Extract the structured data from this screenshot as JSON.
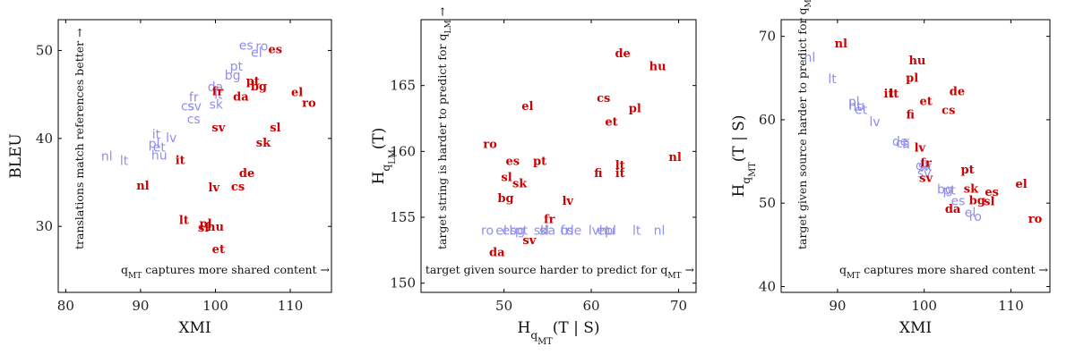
{
  "colors": {
    "source": "#8f8ff0",
    "target": "#cc0000"
  },
  "chart_data": [
    {
      "type": "scatter",
      "xlabel": "XMI",
      "ylabel": "BLEU",
      "xlim": [
        79,
        115.5
      ],
      "ylim": [
        22.5,
        53.5
      ],
      "xticks": [
        80,
        90,
        100,
        110
      ],
      "yticks": [
        30,
        40,
        50
      ],
      "annotation_x": "q_MT captures more shared content →",
      "annotation_y": "translations match references better →",
      "series": [
        {
          "role": "source",
          "points": [
            {
              "label": "es",
              "x": 104.1,
              "y": 50.6
            },
            {
              "label": "ro",
              "x": 106.2,
              "y": 50.5
            },
            {
              "label": "el",
              "x": 105.5,
              "y": 49.8
            },
            {
              "label": "pt",
              "x": 102.8,
              "y": 48.2
            },
            {
              "label": "bg",
              "x": 102.3,
              "y": 47.2
            },
            {
              "label": "da",
              "x": 100.0,
              "y": 45.9
            },
            {
              "label": "fr",
              "x": 97.1,
              "y": 44.7
            },
            {
              "label": "lt",
              "x": 100.4,
              "y": 45.0
            },
            {
              "label": "cs",
              "x": 96.3,
              "y": 43.7
            },
            {
              "label": "sv",
              "x": 97.2,
              "y": 43.7
            },
            {
              "label": "sk",
              "x": 100.1,
              "y": 43.9
            },
            {
              "label": "cs",
              "x": 97.1,
              "y": 42.2
            },
            {
              "label": "it",
              "x": 92.1,
              "y": 40.5
            },
            {
              "label": "lv",
              "x": 94.1,
              "y": 40.1
            },
            {
              "label": "pl",
              "x": 91.8,
              "y": 39.4
            },
            {
              "label": "et",
              "x": 92.5,
              "y": 39.0
            },
            {
              "label": "hu",
              "x": 92.5,
              "y": 38.1
            },
            {
              "label": "nl",
              "x": 85.5,
              "y": 38.0
            },
            {
              "label": "lt",
              "x": 87.8,
              "y": 37.5
            }
          ]
        },
        {
          "role": "target",
          "points": [
            {
              "label": "es",
              "x": 108.0,
              "y": 50.2
            },
            {
              "label": "pt",
              "x": 105.0,
              "y": 46.6
            },
            {
              "label": "bg",
              "x": 105.8,
              "y": 46.0
            },
            {
              "label": "fr",
              "x": 100.3,
              "y": 45.4
            },
            {
              "label": "da",
              "x": 103.4,
              "y": 44.8
            },
            {
              "label": "el",
              "x": 110.9,
              "y": 45.3
            },
            {
              "label": "ro",
              "x": 112.5,
              "y": 44.1
            },
            {
              "label": "sv",
              "x": 100.4,
              "y": 41.3
            },
            {
              "label": "sl",
              "x": 108.0,
              "y": 41.3
            },
            {
              "label": "sk",
              "x": 106.4,
              "y": 39.6
            },
            {
              "label": "it",
              "x": 95.3,
              "y": 37.6
            },
            {
              "label": "de",
              "x": 104.2,
              "y": 36.1
            },
            {
              "label": "nl",
              "x": 90.3,
              "y": 34.7
            },
            {
              "label": "lv",
              "x": 99.8,
              "y": 34.5
            },
            {
              "label": "cs",
              "x": 103.0,
              "y": 34.6
            },
            {
              "label": "lt",
              "x": 95.8,
              "y": 30.8
            },
            {
              "label": "pl",
              "x": 98.7,
              "y": 30.4
            },
            {
              "label": "sl",
              "x": 98.4,
              "y": 29.9
            },
            {
              "label": "hu",
              "x": 100.0,
              "y": 30.0
            },
            {
              "label": "et",
              "x": 100.4,
              "y": 27.5
            }
          ]
        }
      ]
    },
    {
      "type": "scatter",
      "xlabel": "H_{q_MT}(T | S)",
      "ylabel": "H_{q_LM}(T)",
      "xlim": [
        40.5,
        72
      ],
      "ylim": [
        149.3,
        170
      ],
      "xticks": [
        50,
        60,
        70
      ],
      "yticks": [
        150,
        155,
        160,
        165
      ],
      "annotation_x": "target given source harder to predict for q_MT →",
      "annotation_y": "target string is harder to predict for q_LM →",
      "series": [
        {
          "role": "source",
          "points": [
            {
              "label": "ro",
              "x": 48.1,
              "y": 154.0
            },
            {
              "label": "el",
              "x": 49.7,
              "y": 154.0
            },
            {
              "label": "es",
              "x": 50.6,
              "y": 154.0
            },
            {
              "label": "pt",
              "x": 52.0,
              "y": 154.0
            },
            {
              "label": "bg",
              "x": 51.5,
              "y": 154.0
            },
            {
              "label": "sk",
              "x": 54.2,
              "y": 154.0
            },
            {
              "label": "da",
              "x": 55.0,
              "y": 154.0
            },
            {
              "label": "sl",
              "x": 54.6,
              "y": 154.0
            },
            {
              "label": "cs",
              "x": 57.2,
              "y": 154.0
            },
            {
              "label": "fr",
              "x": 57.0,
              "y": 154.0
            },
            {
              "label": "de",
              "x": 58.0,
              "y": 154.0
            },
            {
              "label": "lv",
              "x": 60.3,
              "y": 154.0
            },
            {
              "label": "et",
              "x": 61.4,
              "y": 154.0
            },
            {
              "label": "hu",
              "x": 61.8,
              "y": 154.0
            },
            {
              "label": "pl",
              "x": 62.2,
              "y": 154.0
            },
            {
              "label": "lt",
              "x": 65.2,
              "y": 154.0
            },
            {
              "label": "nl",
              "x": 67.8,
              "y": 154.0
            }
          ]
        },
        {
          "role": "target",
          "points": [
            {
              "label": "de",
              "x": 63.6,
              "y": 167.5
            },
            {
              "label": "hu",
              "x": 67.6,
              "y": 166.5
            },
            {
              "label": "cs",
              "x": 61.4,
              "y": 164.1
            },
            {
              "label": "el",
              "x": 52.7,
              "y": 163.5
            },
            {
              "label": "pl",
              "x": 65.0,
              "y": 163.3
            },
            {
              "label": "et",
              "x": 62.3,
              "y": 162.3
            },
            {
              "label": "ro",
              "x": 48.4,
              "y": 160.6
            },
            {
              "label": "nl",
              "x": 69.6,
              "y": 159.6
            },
            {
              "label": "es",
              "x": 51.0,
              "y": 159.3
            },
            {
              "label": "pt",
              "x": 54.1,
              "y": 159.3
            },
            {
              "label": "lt",
              "x": 63.3,
              "y": 159.0
            },
            {
              "label": "fi",
              "x": 60.8,
              "y": 158.4
            },
            {
              "label": "it",
              "x": 63.3,
              "y": 158.4
            },
            {
              "label": "sl",
              "x": 50.3,
              "y": 158.1
            },
            {
              "label": "sk",
              "x": 51.8,
              "y": 157.6
            },
            {
              "label": "bg",
              "x": 50.2,
              "y": 156.5
            },
            {
              "label": "lv",
              "x": 57.3,
              "y": 156.3
            },
            {
              "label": "fr",
              "x": 55.2,
              "y": 154.9
            },
            {
              "label": "sv",
              "x": 52.9,
              "y": 153.3
            },
            {
              "label": "da",
              "x": 49.2,
              "y": 152.4
            }
          ]
        }
      ]
    },
    {
      "type": "scatter",
      "xlabel": "XMI",
      "ylabel": "H_{q_MT}(T | S)",
      "xlim": [
        83.5,
        114.5
      ],
      "ylim": [
        39.3,
        72
      ],
      "xticks": [
        90,
        100,
        110
      ],
      "yticks": [
        40,
        50,
        60,
        70
      ],
      "annotation_x": "q_MT captures more shared content →",
      "annotation_y": "target given source harder to predict for q_MT →",
      "series": [
        {
          "role": "source",
          "points": [
            {
              "label": "nl",
              "x": 86.8,
              "y": 67.5
            },
            {
              "label": "lt",
              "x": 89.4,
              "y": 64.9
            },
            {
              "label": "pl",
              "x": 91.9,
              "y": 62.2
            },
            {
              "label": "it",
              "x": 92.3,
              "y": 61.6
            },
            {
              "label": "hu",
              "x": 92.2,
              "y": 61.7
            },
            {
              "label": "et",
              "x": 92.7,
              "y": 61.2
            },
            {
              "label": "lv",
              "x": 94.3,
              "y": 59.8
            },
            {
              "label": "de",
              "x": 97.2,
              "y": 57.4
            },
            {
              "label": "cs",
              "x": 97.5,
              "y": 57.2
            },
            {
              "label": "fi",
              "x": 97.9,
              "y": 57.1
            },
            {
              "label": "da",
              "x": 99.9,
              "y": 54.5
            },
            {
              "label": "sk",
              "x": 100.1,
              "y": 54.4
            },
            {
              "label": "sv",
              "x": 100.0,
              "y": 53.6
            },
            {
              "label": "bg",
              "x": 102.4,
              "y": 51.7
            },
            {
              "label": "pt",
              "x": 102.9,
              "y": 51.6
            },
            {
              "label": "es",
              "x": 103.9,
              "y": 50.3
            },
            {
              "label": "el",
              "x": 105.3,
              "y": 48.9
            },
            {
              "label": "ro",
              "x": 105.9,
              "y": 48.4
            }
          ]
        },
        {
          "role": "target",
          "points": [
            {
              "label": "nl",
              "x": 90.4,
              "y": 69.2
            },
            {
              "label": "hu",
              "x": 99.2,
              "y": 67.2
            },
            {
              "label": "pl",
              "x": 98.6,
              "y": 65.1
            },
            {
              "label": "it",
              "x": 95.9,
              "y": 63.2
            },
            {
              "label": "lt",
              "x": 96.5,
              "y": 63.2
            },
            {
              "label": "de",
              "x": 103.8,
              "y": 63.5
            },
            {
              "label": "et",
              "x": 100.2,
              "y": 62.3
            },
            {
              "label": "cs",
              "x": 102.8,
              "y": 61.2
            },
            {
              "label": "fi",
              "x": 98.4,
              "y": 60.7
            },
            {
              "label": "lv",
              "x": 99.5,
              "y": 56.7
            },
            {
              "label": "fr",
              "x": 100.2,
              "y": 54.9
            },
            {
              "label": "sv",
              "x": 100.2,
              "y": 53.1
            },
            {
              "label": "pt",
              "x": 105.0,
              "y": 54.1
            },
            {
              "label": "sk",
              "x": 105.4,
              "y": 51.8
            },
            {
              "label": "es",
              "x": 107.8,
              "y": 51.4
            },
            {
              "label": "bg",
              "x": 106.1,
              "y": 50.4
            },
            {
              "label": "sl",
              "x": 107.5,
              "y": 50.3
            },
            {
              "label": "da",
              "x": 103.3,
              "y": 49.4
            },
            {
              "label": "el",
              "x": 111.2,
              "y": 52.4
            },
            {
              "label": "ro",
              "x": 112.8,
              "y": 48.2
            }
          ]
        }
      ]
    }
  ]
}
